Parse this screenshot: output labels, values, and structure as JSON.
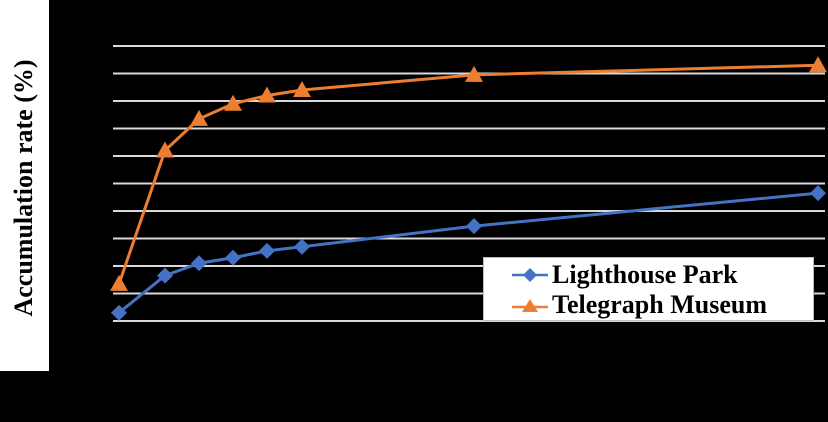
{
  "chart_data": {
    "type": "line",
    "title": "",
    "xlabel": "",
    "ylabel": "Accumulation rate (%)",
    "ylim": [
      0,
      100
    ],
    "y_gridlines": [
      0,
      10,
      20,
      30,
      40,
      50,
      60,
      70,
      80,
      90,
      100
    ],
    "grid": true,
    "legend_position": "lower right (inside plot)",
    "x": [
      0,
      1,
      2,
      3,
      4,
      5,
      10,
      20
    ],
    "series": [
      {
        "name": "Lighthouse Park",
        "color": "#4472C4",
        "marker": "diamond",
        "values": [
          3,
          16.5,
          21,
          23,
          25.5,
          27,
          34.5,
          46.5
        ]
      },
      {
        "name": "Telegraph Museum",
        "color": "#ED7D31",
        "marker": "triangle",
        "values": [
          13.5,
          62,
          73.5,
          79,
          82,
          84,
          89.5,
          93
        ]
      }
    ]
  },
  "axis": {
    "ylabel": "Accumulation rate (%)"
  },
  "legend": {
    "items": [
      {
        "label": "Lighthouse Park"
      },
      {
        "label": "Telegraph Museum"
      }
    ]
  },
  "colors": {
    "background": "#000000",
    "gridline": "#d9d9d9",
    "series1": "#4472C4",
    "series2": "#ED7D31"
  }
}
